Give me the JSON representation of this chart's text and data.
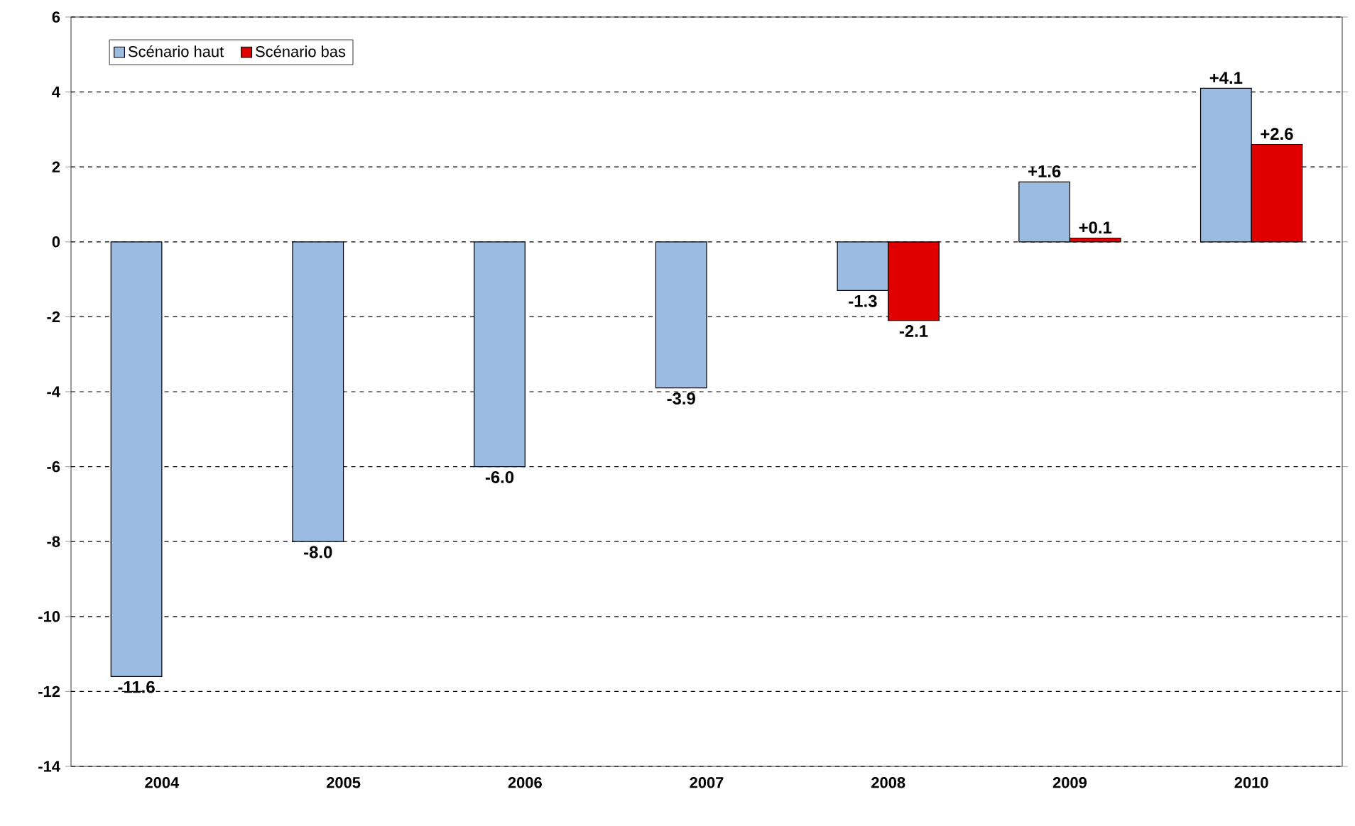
{
  "chart_data": {
    "type": "bar",
    "categories": [
      "2004",
      "2005",
      "2006",
      "2007",
      "2008",
      "2009",
      "2010"
    ],
    "series": [
      {
        "name": "Scénario haut",
        "color": "#9bbbe0",
        "values": [
          -11.6,
          -8.0,
          -6.0,
          -3.9,
          -1.3,
          1.6,
          4.1
        ],
        "value_labels": [
          "-11.6",
          "-8.0",
          "-6.0",
          "-3.9",
          "-1.3",
          "+1.6",
          "+4.1"
        ]
      },
      {
        "name": "Scénario bas",
        "color": "#e00000",
        "values": [
          null,
          null,
          null,
          null,
          -2.1,
          0.1,
          2.6
        ],
        "value_labels": [
          null,
          null,
          null,
          null,
          "-2.1",
          "+0.1",
          "+2.6"
        ]
      }
    ],
    "ylim": [
      -14,
      6
    ],
    "yticks": [
      -14,
      -12,
      -10,
      -8,
      -6,
      -4,
      -2,
      0,
      2,
      4,
      6
    ],
    "grid": "y",
    "legend": "top left"
  }
}
